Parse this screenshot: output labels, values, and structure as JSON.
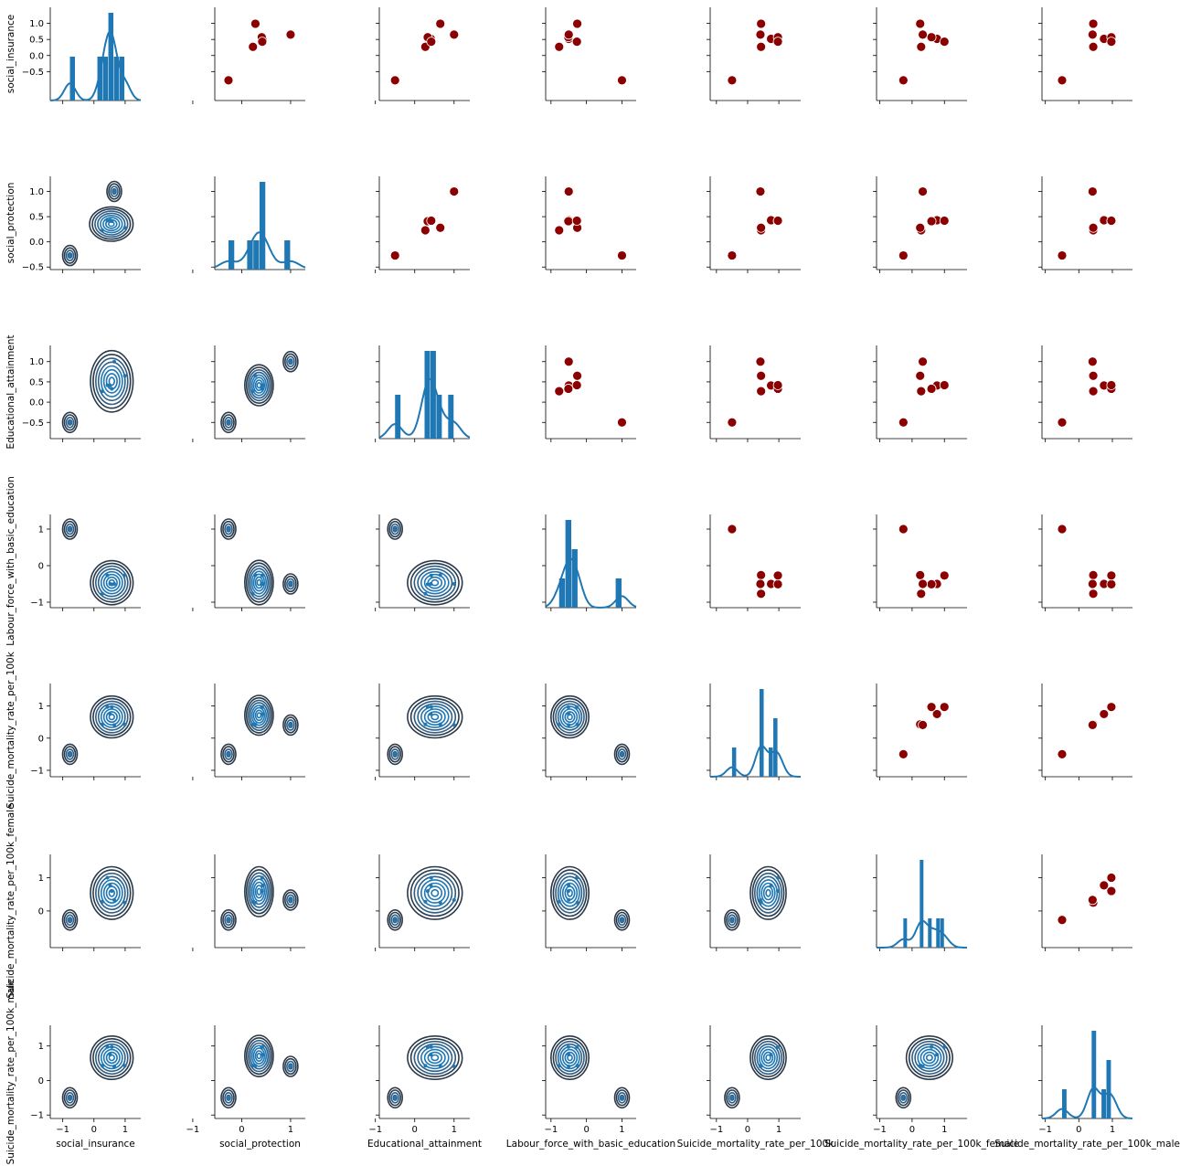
{
  "chart_data": {
    "type": "pairgrid",
    "upper": "scatter",
    "diag": "histogram+kde",
    "lower": "kde",
    "variables": [
      "social_insurance",
      "social_protection",
      "Educational_attainment",
      "Labour_force_with_basic_education",
      "Suicide_mortality_rate_per_100k",
      "Suicide_mortality_rate_per_100k_female",
      "Suicide_mortality_rate_per_100k_male"
    ],
    "data": {
      "social_insurance": [
        -0.77,
        0.27,
        0.52,
        0.57,
        0.99,
        0.65,
        0.43
      ],
      "social_protection": [
        -0.27,
        0.23,
        0.43,
        0.41,
        0.28,
        1.0,
        0.42
      ],
      "Educational_attainment": [
        -0.5,
        0.27,
        0.41,
        0.33,
        0.65,
        1.0,
        0.42
      ],
      "Labour_force_with_basic_education": [
        1.0,
        -0.77,
        -0.5,
        -0.51,
        -0.26,
        -0.5,
        -0.27
      ],
      "Suicide_mortality_rate_per_100k": [
        -0.5,
        0.43,
        0.75,
        0.97,
        0.43,
        0.41,
        0.97
      ],
      "Suicide_mortality_rate_per_100k_female": [
        -0.27,
        0.28,
        0.77,
        0.6,
        0.25,
        0.33,
        1.0
      ],
      "Suicide_mortality_rate_per_100k_male": [
        -0.5,
        0.43,
        0.75,
        0.97,
        0.43,
        0.41,
        0.97
      ]
    },
    "axis_ranges": [
      [
        -1.4,
        1.5
      ],
      [
        -0.55,
        1.3
      ],
      [
        -0.9,
        1.4
      ],
      [
        -1.15,
        1.4
      ],
      [
        -1.2,
        1.7
      ],
      [
        -1.1,
        1.7
      ],
      [
        -1.1,
        1.6
      ]
    ],
    "ticks": [
      [
        -1,
        0,
        1
      ],
      [
        -1,
        0,
        1
      ],
      [
        -1,
        0,
        1
      ],
      [
        -1,
        0,
        1
      ],
      [
        -1,
        0,
        1
      ],
      [
        -1,
        0,
        1
      ],
      [
        -1,
        0,
        1
      ]
    ],
    "ytick_labels": [
      [
        "-0.5",
        "0.0",
        "0.5",
        "1.0"
      ],
      [
        "-0.5",
        "0.0",
        "0.5",
        "1.0"
      ],
      [
        "-0.5",
        "0.0",
        "0.5",
        "1.0"
      ],
      [
        "-1",
        "0",
        "1"
      ],
      [
        "-1",
        "0",
        "1"
      ],
      [
        "0",
        "1"
      ],
      [
        "-1",
        "0",
        "1"
      ]
    ],
    "grid": false,
    "scatter_color": "#8b0000",
    "hist_color": "#1f77b4",
    "kde_color": "#1f77b4",
    "kde_outer_color": "#2b3a4a"
  }
}
